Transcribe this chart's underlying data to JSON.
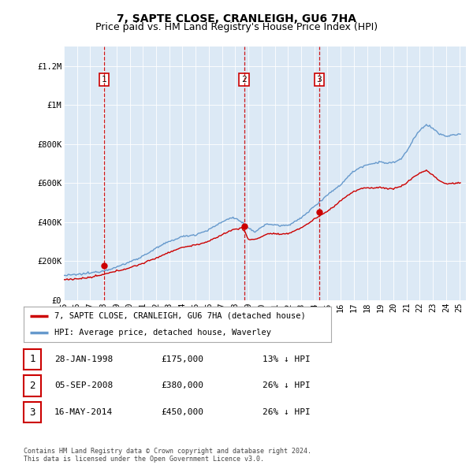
{
  "title": "7, SAPTE CLOSE, CRANLEIGH, GU6 7HA",
  "subtitle": "Price paid vs. HM Land Registry's House Price Index (HPI)",
  "ylim": [
    0,
    1300000
  ],
  "yticks": [
    0,
    200000,
    400000,
    600000,
    800000,
    1000000,
    1200000
  ],
  "ytick_labels": [
    "£0",
    "£200K",
    "£400K",
    "£600K",
    "£800K",
    "£1M",
    "£1.2M"
  ],
  "bg_color": "#dce9f5",
  "line_color_hpi": "#6699cc",
  "line_color_price": "#cc0000",
  "purchase_years": [
    1998.07,
    2008.67,
    2014.37
  ],
  "purchase_prices": [
    175000,
    380000,
    450000
  ],
  "purchase_labels": [
    "1",
    "2",
    "3"
  ],
  "legend_price_label": "7, SAPTE CLOSE, CRANLEIGH, GU6 7HA (detached house)",
  "legend_hpi_label": "HPI: Average price, detached house, Waverley",
  "table_rows": [
    [
      "1",
      "28-JAN-1998",
      "£175,000",
      "13% ↓ HPI"
    ],
    [
      "2",
      "05-SEP-2008",
      "£380,000",
      "26% ↓ HPI"
    ],
    [
      "3",
      "16-MAY-2014",
      "£450,000",
      "26% ↓ HPI"
    ]
  ],
  "footer": "Contains HM Land Registry data © Crown copyright and database right 2024.\nThis data is licensed under the Open Government Licence v3.0.",
  "title_fontsize": 10,
  "subtitle_fontsize": 9,
  "tick_fontsize": 7.5
}
